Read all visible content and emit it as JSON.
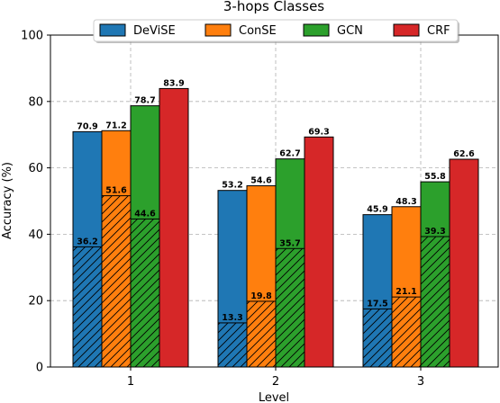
{
  "chart_data": {
    "type": "bar",
    "title": "3-hops Classes",
    "xlabel": "Level",
    "ylabel": "Accuracy (%)",
    "ylim": [
      0,
      100
    ],
    "yticks": [
      0,
      20,
      40,
      60,
      80,
      100
    ],
    "categories": [
      "1",
      "2",
      "3"
    ],
    "series": [
      {
        "name": "DeViSE",
        "color": "#1f77b4",
        "values": [
          70.9,
          53.2,
          45.9
        ],
        "hatched_values": [
          36.2,
          13.3,
          17.5
        ]
      },
      {
        "name": "ConSE",
        "color": "#ff7f0e",
        "values": [
          71.2,
          54.6,
          48.3
        ],
        "hatched_values": [
          51.6,
          19.8,
          21.1
        ]
      },
      {
        "name": "GCN",
        "color": "#2ca02c",
        "values": [
          78.7,
          62.7,
          55.8
        ],
        "hatched_values": [
          44.6,
          35.7,
          39.3
        ]
      },
      {
        "name": "CRF",
        "color": "#d62728",
        "values": [
          83.9,
          69.3,
          62.6
        ],
        "hatched_values": [
          null,
          null,
          null
        ]
      }
    ],
    "grid": true,
    "legend_position": "top-center"
  }
}
